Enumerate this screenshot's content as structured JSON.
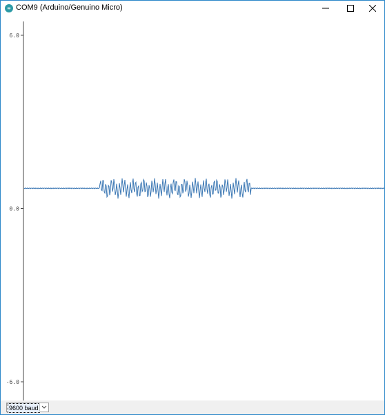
{
  "window": {
    "title": "COM9 (Arduino/Genuino Micro)",
    "icon": "arduino-icon",
    "border_color": "#2b87c9"
  },
  "controls": {
    "minimize_icon": "minimize-icon",
    "maximize_icon": "maximize-icon",
    "close_icon": "close-icon"
  },
  "plot": {
    "axis_color": "#444444",
    "line_color": "#3c78b4"
  },
  "chart_data": {
    "type": "line",
    "ylim": [
      -6.0,
      6.0
    ],
    "y_ticks": [
      "6.0",
      "0.0",
      "-6.0"
    ],
    "baseline_value": 0.7,
    "burst": {
      "x_range": [
        0.21,
        0.63
      ],
      "min": 0.2,
      "max": 1.1
    },
    "series": [
      {
        "values": [
          0.7,
          0.7,
          0.7,
          0.7,
          0.7,
          0.7,
          0.7,
          0.7,
          0.7,
          0.7,
          0.7,
          0.7,
          0.7,
          0.7,
          0.7,
          0.7,
          0.7,
          0.7,
          0.7,
          0.7,
          0.7,
          0.7,
          0.7,
          0.7,
          0.7,
          0.7,
          0.7,
          0.7,
          0.7,
          0.7,
          0.7,
          0.7,
          0.7,
          0.7,
          0.7,
          0.7,
          0.7,
          0.7,
          0.7,
          0.7,
          0.7,
          0.7,
          0.7,
          0.7,
          0.7,
          0.7,
          0.7,
          0.7,
          0.7,
          0.7
        ]
      }
    ]
  },
  "bottom": {
    "baud_value": "9600 baud",
    "dropdown_icon": "chevron-down-icon"
  }
}
